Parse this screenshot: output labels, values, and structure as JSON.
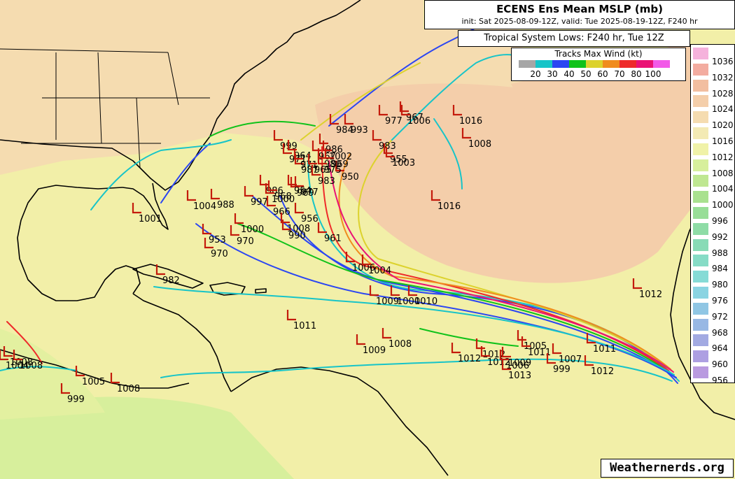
{
  "title": {
    "main": "ECENS Ens Mean MSLP (mb)",
    "sub": "init: Sat 2025-08-09-12Z, valid: Tue 2025-08-19-12Z, F240 hr"
  },
  "systems_label": "Tropical System Lows: F240 hr, Tue 12Z",
  "wind_legend": {
    "title": "Tracks Max Wind (kt)",
    "colors": [
      "#a6a6a6",
      "#17c4c8",
      "#2b46f2",
      "#10c21a",
      "#dcd22d",
      "#f08c1e",
      "#ee2a2a",
      "#ea1275",
      "#f25ae8"
    ],
    "labels": [
      "20",
      "30",
      "40",
      "50",
      "60",
      "70",
      "80",
      "100"
    ]
  },
  "mslp_legend": [
    {
      "label": "1036",
      "color": "#f5b2dc"
    },
    {
      "label": "1032",
      "color": "#f3aca0"
    },
    {
      "label": "1028",
      "color": "#f2bea0"
    },
    {
      "label": "1024",
      "color": "#f4ceaa"
    },
    {
      "label": "1020",
      "color": "#f5dcb0"
    },
    {
      "label": "1016",
      "color": "#f3eab4"
    },
    {
      "label": "1012",
      "color": "#f0f2a8"
    },
    {
      "label": "1008",
      "color": "#d7ef9c"
    },
    {
      "label": "1004",
      "color": "#bfe791"
    },
    {
      "label": "1000",
      "color": "#a9e18f"
    },
    {
      "label": "996",
      "color": "#98de97"
    },
    {
      "label": "992",
      "color": "#8edca6"
    },
    {
      "label": "988",
      "color": "#88dbb6"
    },
    {
      "label": "984",
      "color": "#86dcc6"
    },
    {
      "label": "980",
      "color": "#86dbd6"
    },
    {
      "label": "976",
      "color": "#8ad4e2"
    },
    {
      "label": "972",
      "color": "#90c6e4"
    },
    {
      "label": "968",
      "color": "#98b8e4"
    },
    {
      "label": "964",
      "color": "#a2aae2"
    },
    {
      "label": "960",
      "color": "#ad9fe2"
    },
    {
      "label": "956",
      "color": "#b99ae0"
    }
  ],
  "lows": [
    {
      "value": "1016"
    },
    {
      "value": "1008"
    },
    {
      "value": "1016"
    },
    {
      "value": "984"
    },
    {
      "value": "993"
    },
    {
      "value": "977"
    },
    {
      "value": "967"
    },
    {
      "value": "1006"
    },
    {
      "value": "983"
    },
    {
      "value": "955"
    },
    {
      "value": "1003"
    },
    {
      "value": "999"
    },
    {
      "value": "986"
    },
    {
      "value": "1002"
    },
    {
      "value": "964"
    },
    {
      "value": "971"
    },
    {
      "value": "987"
    },
    {
      "value": "967"
    },
    {
      "value": "980"
    },
    {
      "value": "983"
    },
    {
      "value": "950"
    },
    {
      "value": "971"
    },
    {
      "value": "969"
    },
    {
      "value": "965"
    },
    {
      "value": "975"
    },
    {
      "value": "969"
    },
    {
      "value": "954"
    },
    {
      "value": "977"
    },
    {
      "value": "997"
    },
    {
      "value": "986"
    },
    {
      "value": "968"
    },
    {
      "value": "966"
    },
    {
      "value": "1000"
    },
    {
      "value": "956"
    },
    {
      "value": "1008"
    },
    {
      "value": "990"
    },
    {
      "value": "961"
    },
    {
      "value": "1004"
    },
    {
      "value": "988"
    },
    {
      "value": "1001"
    },
    {
      "value": "1000"
    },
    {
      "value": "953"
    },
    {
      "value": "970"
    },
    {
      "value": "970"
    },
    {
      "value": "982"
    },
    {
      "value": "1006"
    },
    {
      "value": "1004"
    },
    {
      "value": "1009"
    },
    {
      "value": "1000"
    },
    {
      "value": "1010"
    },
    {
      "value": "1011"
    },
    {
      "value": "1009"
    },
    {
      "value": "1008"
    },
    {
      "value": "1012"
    },
    {
      "value": "1012"
    },
    {
      "value": "1012"
    },
    {
      "value": "1006"
    },
    {
      "value": "1009"
    },
    {
      "value": "1005"
    },
    {
      "value": "1011"
    },
    {
      "value": "999"
    },
    {
      "value": "1013"
    },
    {
      "value": "1007"
    },
    {
      "value": "1011"
    },
    {
      "value": "1012"
    },
    {
      "value": "1012"
    },
    {
      "value": "1008"
    },
    {
      "value": "1004"
    },
    {
      "value": "1008"
    },
    {
      "value": "1005"
    },
    {
      "value": "1008"
    },
    {
      "value": "999"
    }
  ],
  "watermark": "Weathernerds.org"
}
